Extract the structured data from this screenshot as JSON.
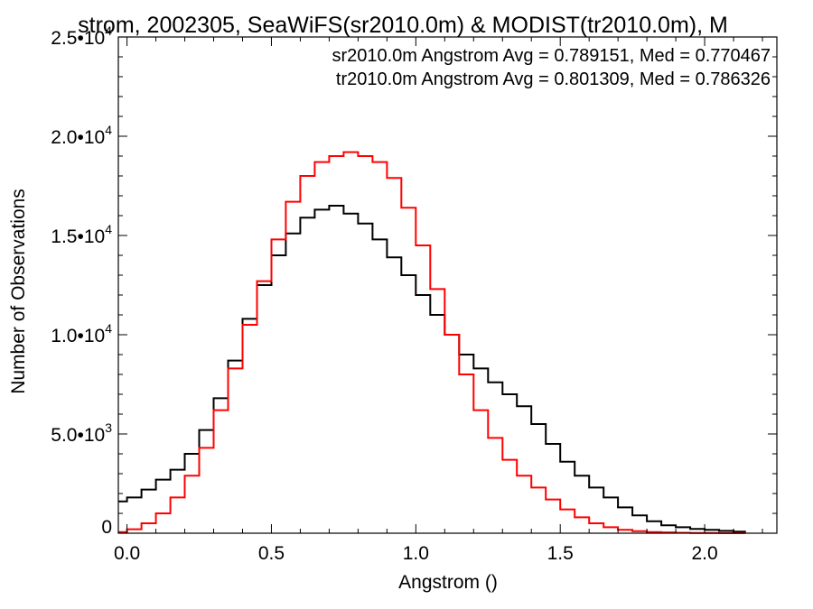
{
  "chart_data": {
    "type": "line",
    "title": "strom, 2002305, SeaWiFS(sr2010.0m) & MODIST(tr2010.0m), M",
    "xlabel": "Angstrom ()",
    "ylabel": "Number of Observations",
    "xlim": [
      -0.03,
      2.25
    ],
    "ylim": [
      0,
      25000
    ],
    "xticks": [
      {
        "value": 0.0,
        "label": "0.0"
      },
      {
        "value": 0.5,
        "label": "0.5"
      },
      {
        "value": 1.0,
        "label": "1.0"
      },
      {
        "value": 1.5,
        "label": "1.5"
      },
      {
        "value": 2.0,
        "label": "2.0"
      }
    ],
    "yticks": [
      {
        "value": 0,
        "mantissa": "0",
        "exp": ""
      },
      {
        "value": 5000,
        "mantissa": "5.0•10",
        "exp": "3"
      },
      {
        "value": 10000,
        "mantissa": "1.0•10",
        "exp": "4"
      },
      {
        "value": 15000,
        "mantissa": "1.5•10",
        "exp": "4"
      },
      {
        "value": 20000,
        "mantissa": "2.0•10",
        "exp": "4"
      },
      {
        "value": 25000,
        "mantissa": "2.5•10",
        "exp": "4"
      }
    ],
    "annotations": [
      {
        "text": "sr2010.0m Angstrom Avg = 0.789151, Med = 0.770467",
        "color": "#000000"
      },
      {
        "text": "tr2010.0m Angstrom Avg = 0.801309, Med = 0.786326",
        "color": "#ff0000"
      }
    ],
    "series": [
      {
        "color": "#000000",
        "x": [
          -0.03,
          0.0,
          0.05,
          0.1,
          0.15,
          0.2,
          0.25,
          0.3,
          0.35,
          0.4,
          0.45,
          0.5,
          0.55,
          0.6,
          0.65,
          0.7,
          0.75,
          0.8,
          0.85,
          0.9,
          0.95,
          1.0,
          1.05,
          1.1,
          1.15,
          1.2,
          1.25,
          1.3,
          1.35,
          1.4,
          1.45,
          1.5,
          1.55,
          1.6,
          1.65,
          1.7,
          1.75,
          1.8,
          1.85,
          1.9,
          1.95,
          2.0,
          2.05,
          2.1,
          2.14
        ],
        "y": [
          1600,
          1800,
          2200,
          2700,
          3200,
          4000,
          5200,
          6800,
          8700,
          10800,
          12500,
          14000,
          15100,
          15900,
          16300,
          16500,
          16100,
          15600,
          14800,
          13900,
          13000,
          12000,
          11000,
          10000,
          9000,
          8300,
          7600,
          7000,
          6400,
          5500,
          4500,
          3600,
          2900,
          2300,
          1800,
          1300,
          900,
          600,
          400,
          300,
          220,
          170,
          120,
          80,
          30
        ]
      },
      {
        "color": "#ff0000",
        "x": [
          -0.03,
          0.0,
          0.05,
          0.1,
          0.15,
          0.2,
          0.25,
          0.3,
          0.35,
          0.4,
          0.45,
          0.5,
          0.55,
          0.6,
          0.65,
          0.7,
          0.75,
          0.8,
          0.85,
          0.9,
          0.95,
          1.0,
          1.05,
          1.1,
          1.15,
          1.2,
          1.25,
          1.3,
          1.35,
          1.4,
          1.45,
          1.5,
          1.55,
          1.6,
          1.65,
          1.7,
          1.75,
          1.8,
          1.85,
          1.9,
          1.95,
          2.0,
          2.05,
          2.1,
          2.14
        ],
        "y": [
          60,
          200,
          500,
          1000,
          1800,
          2900,
          4300,
          6200,
          8300,
          10500,
          12700,
          14800,
          16700,
          18000,
          18700,
          19000,
          19200,
          19000,
          18700,
          17900,
          16400,
          14500,
          12300,
          10000,
          8000,
          6200,
          4800,
          3700,
          2900,
          2300,
          1700,
          1200,
          800,
          500,
          300,
          170,
          100,
          60,
          40,
          25,
          15,
          10,
          6,
          3,
          1
        ]
      }
    ]
  }
}
